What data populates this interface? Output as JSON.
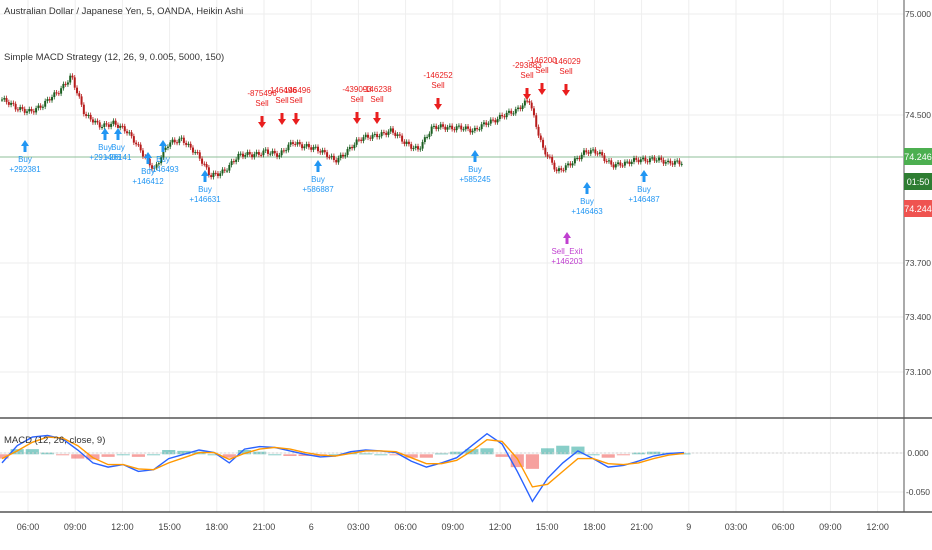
{
  "header": {
    "symbol_line": "Australian Dollar / Japanese Yen, 5, OANDA, Heikin Ashi",
    "strategy_line": "Simple MACD Strategy (12, 26, 9, 0.005, 5000, 150)"
  },
  "macd_label": "MACD (12, 26, close, 9)",
  "price_badges": {
    "current": "74.246",
    "countdown": "01:50",
    "bid": "74.244"
  },
  "colors": {
    "up_candle": "#26a69a",
    "down_candle": "#ef5350",
    "buy": "#2196f3",
    "sell": "#e91e1e",
    "exit": "#c040d0",
    "macd_line": "#2962ff",
    "signal_line": "#ff9800",
    "hist_pos": "#26a69a",
    "hist_neg": "#ef5350",
    "price_line": "#8fbf9a"
  },
  "chart_data": [
    {
      "type": "candlestick",
      "title": "Australian Dollar / Japanese Yen, 5, OANDA, Heikin Ashi",
      "ylim": [
        72.95,
        75.05
      ],
      "y_ticks": [
        "75.000",
        "74.500",
        "74.246",
        "73.700",
        "73.400",
        "73.100"
      ],
      "x_ticks": [
        "06:00",
        "09:00",
        "12:00",
        "15:00",
        "18:00",
        "21:00",
        "6",
        "03:00",
        "06:00",
        "09:00",
        "12:00",
        "15:00",
        "18:00",
        "21:00",
        "9",
        "03:00",
        "06:00",
        "09:00",
        "12:00"
      ],
      "close": [
        74.55,
        74.5,
        74.5,
        74.52,
        74.58,
        74.68,
        74.46,
        74.42,
        74.44,
        74.38,
        74.3,
        74.2,
        74.32,
        74.36,
        74.28,
        74.16,
        74.2,
        74.26,
        74.27,
        74.3,
        74.26,
        74.34,
        74.32,
        74.28,
        74.25,
        74.3,
        74.35,
        74.38,
        74.39,
        74.33,
        74.31,
        74.4,
        74.41,
        74.42,
        74.38,
        74.44,
        74.47,
        74.48,
        74.56,
        74.3,
        74.18,
        74.24,
        74.28,
        74.28,
        74.23,
        74.22,
        74.25,
        74.26,
        74.22,
        74.24
      ],
      "signals": [
        {
          "kind": "Buy",
          "value": "+292381",
          "direction": "up"
        },
        {
          "kind": "Buy",
          "value": "+291406",
          "direction": "up"
        },
        {
          "kind": "Buy",
          "value": "+26141",
          "direction": "up"
        },
        {
          "kind": "Buy",
          "value": "+146412",
          "direction": "up"
        },
        {
          "kind": "Buy",
          "value": "+146493",
          "direction": "up"
        },
        {
          "kind": "Buy",
          "value": "+146631",
          "direction": "up"
        },
        {
          "kind": "Sell",
          "value": "-875496",
          "direction": "down"
        },
        {
          "kind": "Sell",
          "value": "-146496",
          "direction": "down"
        },
        {
          "kind": "Sell",
          "value": "-146496",
          "direction": "down"
        },
        {
          "kind": "Buy",
          "value": "+586887",
          "direction": "up"
        },
        {
          "kind": "Sell",
          "value": "-439093",
          "direction": "down"
        },
        {
          "kind": "Sell",
          "value": "-146238",
          "direction": "down"
        },
        {
          "kind": "Sell",
          "value": "-146252",
          "direction": "down"
        },
        {
          "kind": "Buy",
          "value": "+585245",
          "direction": "up"
        },
        {
          "kind": "Sell",
          "value": "-293883",
          "direction": "down"
        },
        {
          "kind": "Sell",
          "value": "-146200",
          "direction": "down"
        },
        {
          "kind": "Sell",
          "value": "-146029",
          "direction": "down"
        },
        {
          "kind": "Sell_Exit",
          "value": "+146203",
          "direction": "up"
        },
        {
          "kind": "Buy",
          "value": "+146463",
          "direction": "up"
        },
        {
          "kind": "Buy",
          "value": "+146487",
          "direction": "up"
        }
      ]
    },
    {
      "type": "line",
      "title": "MACD (12, 26, close, 9)",
      "ylim": [
        -0.065,
        0.04
      ],
      "y_ticks": [
        "0.000",
        "-0.050"
      ],
      "series": [
        {
          "name": "MACD",
          "values": [
            -0.01,
            0.01,
            0.02,
            0.022,
            0.018,
            0.005,
            -0.01,
            -0.015,
            -0.012,
            -0.02,
            -0.018,
            -0.005,
            0.0,
            0.005,
            0.002,
            -0.01,
            0.006,
            0.009,
            0.008,
            0.004,
            0.0,
            -0.003,
            -0.002,
            0.003,
            0.005,
            0.004,
            0.002,
            -0.008,
            -0.015,
            -0.01,
            -0.004,
            0.01,
            0.024,
            0.012,
            -0.02,
            -0.055,
            -0.028,
            -0.01,
            0.004,
            -0.005,
            -0.015,
            -0.013,
            -0.008,
            -0.002,
            0.001,
            0.002
          ]
        },
        {
          "name": "Signal",
          "values": [
            -0.005,
            0.004,
            0.014,
            0.02,
            0.019,
            0.01,
            -0.004,
            -0.012,
            -0.012,
            -0.017,
            -0.018,
            -0.01,
            -0.004,
            0.002,
            0.002,
            -0.006,
            0.001,
            0.006,
            0.008,
            0.006,
            0.002,
            -0.001,
            -0.002,
            0.001,
            0.004,
            0.004,
            0.003,
            -0.004,
            -0.011,
            -0.011,
            -0.007,
            0.004,
            0.017,
            0.015,
            -0.005,
            -0.038,
            -0.035,
            -0.02,
            -0.005,
            -0.005,
            -0.011,
            -0.012,
            -0.01,
            -0.005,
            -0.001,
            0.001
          ]
        }
      ]
    }
  ]
}
